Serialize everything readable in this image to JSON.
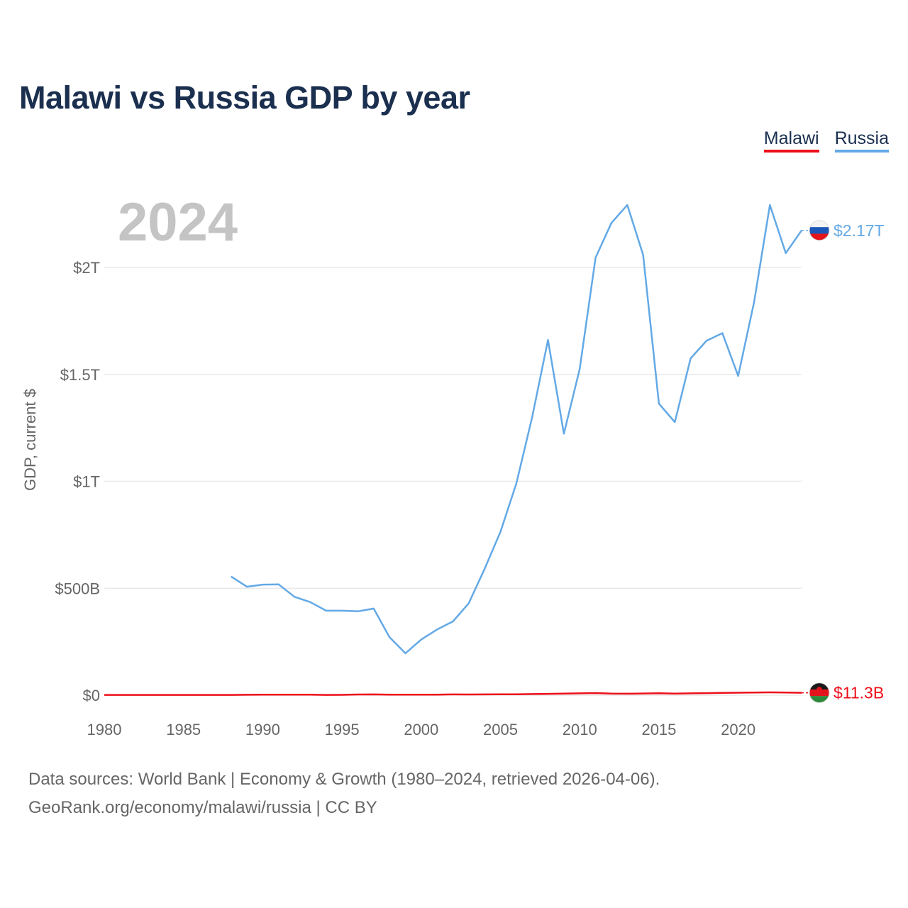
{
  "title": "Malawi vs Russia GDP by year",
  "legend": [
    {
      "name": "Malawi",
      "color": "#ee0f1a"
    },
    {
      "name": "Russia",
      "color": "#63a9e6"
    }
  ],
  "footer": {
    "line1": "Data sources: World Bank | Economy & Growth (1980–2024, retrieved 2026-04-06).",
    "line2": "GeoRank.org/economy/malawi/russia | CC BY"
  },
  "chart_data": {
    "type": "line",
    "title": "Malawi vs Russia GDP by year",
    "xlabel": "",
    "ylabel": "GDP, current $",
    "year_label": "2024",
    "xlim": [
      1980,
      2024
    ],
    "ylim": [
      0,
      2300000000000
    ],
    "x_ticks": [
      1980,
      1985,
      1990,
      1995,
      2000,
      2005,
      2010,
      2015,
      2020
    ],
    "y_ticks": [
      {
        "value": 0,
        "label": "$0"
      },
      {
        "value": 500000000000,
        "label": "$500B"
      },
      {
        "value": 1000000000000,
        "label": "$1T"
      },
      {
        "value": 1500000000000,
        "label": "$1.5T"
      },
      {
        "value": 2000000000000,
        "label": "$2T"
      }
    ],
    "series": [
      {
        "name": "Malawi",
        "color": "#ee0f1a",
        "end_label": "$11.3B",
        "x": [
          1980,
          1981,
          1982,
          1983,
          1984,
          1985,
          1986,
          1987,
          1988,
          1989,
          1990,
          1991,
          1992,
          1993,
          1994,
          1995,
          1996,
          1997,
          1998,
          1999,
          2000,
          2001,
          2002,
          2003,
          2004,
          2005,
          2006,
          2007,
          2008,
          2009,
          2010,
          2011,
          2012,
          2013,
          2014,
          2015,
          2016,
          2017,
          2018,
          2019,
          2020,
          2021,
          2022,
          2023,
          2024
        ],
        "values": [
          1200000000.0,
          1200000000.0,
          1200000000.0,
          1200000000.0,
          1300000000.0,
          1200000000.0,
          1300000000.0,
          1300000000.0,
          1400000000.0,
          1900000000.0,
          2500000000.0,
          2700000000.0,
          2300000000.0,
          2700000000.0,
          1200000000.0,
          1800000000.0,
          3200000000.0,
          3700000000.0,
          2400000000.0,
          2500000000.0,
          2600000000.0,
          2500000000.0,
          3600000000.0,
          3400000000.0,
          3600000000.0,
          3900000000.0,
          4300000000.0,
          5200000000.0,
          6400000000.0,
          7600000000.0,
          8700000000.0,
          10000000000.0,
          7600000000.0,
          7000000000.0,
          8000000000.0,
          8800000000.0,
          7200000000.0,
          8600000000.0,
          9700000000.0,
          10900000000.0,
          11700000000.0,
          12600000000.0,
          13200000000.0,
          12700000000.0,
          11300000000.0
        ]
      },
      {
        "name": "Russia",
        "color": "#63a9e6",
        "end_label": "$2.17T",
        "x": [
          1988,
          1989,
          1990,
          1991,
          1992,
          1993,
          1994,
          1995,
          1996,
          1997,
          1998,
          1999,
          2000,
          2001,
          2002,
          2003,
          2004,
          2005,
          2006,
          2007,
          2008,
          2009,
          2010,
          2011,
          2012,
          2013,
          2014,
          2015,
          2016,
          2017,
          2018,
          2019,
          2020,
          2021,
          2022,
          2023,
          2024
        ],
        "values": [
          555000000000.0,
          507000000000.0,
          517000000000.0,
          518000000000.0,
          460000000000.0,
          435000000000.0,
          395000000000.0,
          395000000000.0,
          392000000000.0,
          405000000000.0,
          271000000000.0,
          196000000000.0,
          260000000000.0,
          307000000000.0,
          345000000000.0,
          430000000000.0,
          591000000000.0,
          764000000000.0,
          990000000000.0,
          1300000000000.0,
          1661000000000.0,
          1223000000000.0,
          1525000000000.0,
          2046000000000.0,
          2208000000000.0,
          2292000000000.0,
          2059000000000.0,
          1363000000000.0,
          1277000000000.0,
          1575000000000.0,
          1657000000000.0,
          1693000000000.0,
          1493000000000.0,
          1837000000000.0,
          2292000000000.0,
          2067000000000.0,
          2173000000000.0
        ]
      }
    ]
  }
}
